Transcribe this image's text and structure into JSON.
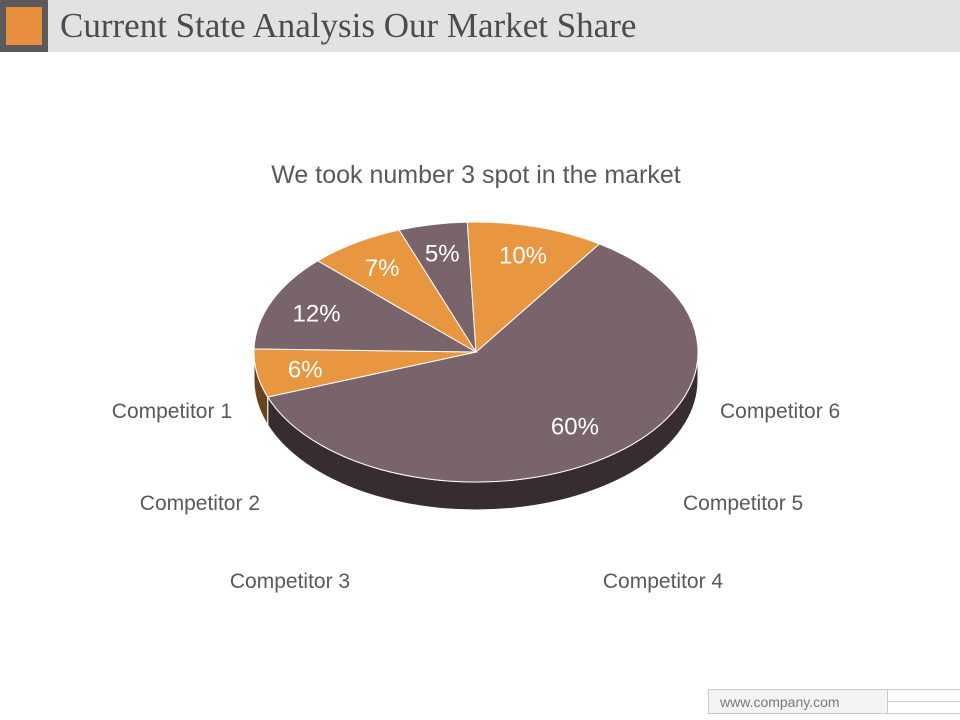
{
  "header": {
    "title": "Current State Analysis Our Market Share"
  },
  "colors": {
    "accent_orange": "#e8963f",
    "slice_mauve": "#7a646b",
    "header_bg": "#e3e2e2"
  },
  "chart_data": {
    "type": "pie",
    "title": "We took number 3 spot in the market",
    "three_d": true,
    "slices": [
      {
        "name": "Competitor 1",
        "value": 60,
        "label": "60%",
        "color": "#7a646b"
      },
      {
        "name": "Competitor 2",
        "value": 6,
        "label": "6%",
        "color": "#e8963f"
      },
      {
        "name": "Competitor 3",
        "value": 12,
        "label": "12%",
        "color": "#7a646b"
      },
      {
        "name": "Competitor 4",
        "value": 7,
        "label": "7%",
        "color": "#e8963f"
      },
      {
        "name": "Competitor 5",
        "value": 5,
        "label": "5%",
        "color": "#7a646b"
      },
      {
        "name": "Competitor 6",
        "value": 10,
        "label": "10%",
        "color": "#e8963f"
      }
    ]
  },
  "footer": {
    "website": "www.company.com"
  }
}
